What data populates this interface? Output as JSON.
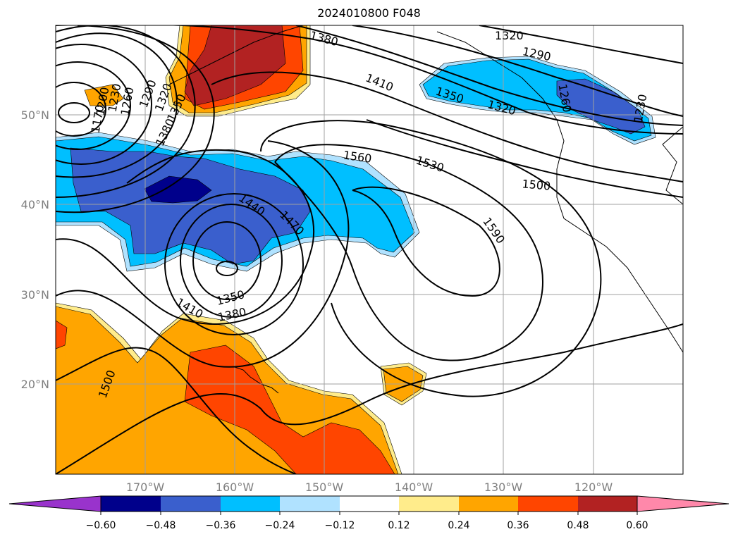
{
  "title": "2024010800 F048",
  "map": {
    "lon_range": [
      -180,
      -110
    ],
    "lat_range": [
      10,
      60
    ],
    "lon_gridlines": [
      -170,
      -160,
      -150,
      -140,
      -130,
      -120
    ],
    "lat_gridlines": [
      20,
      30,
      40,
      50
    ],
    "lon_labels": [
      "170°W",
      "160°W",
      "150°W",
      "140°W",
      "130°W",
      "120°W"
    ],
    "lat_labels": [
      "20°N",
      "30°N",
      "40°N",
      "50°N"
    ],
    "contour_labels": [
      "1380",
      "1320",
      "1290",
      "1410",
      "1350",
      "1320",
      "1260",
      "1230",
      "1170",
      "1200",
      "1230",
      "1260",
      "1290",
      "1320",
      "1350",
      "1380",
      "1560",
      "1530",
      "1500",
      "1440",
      "1470",
      "1590",
      "1350",
      "1380",
      "1410",
      "1500"
    ]
  },
  "colorbar": {
    "ticks": [
      "−0.60",
      "−0.48",
      "−0.36",
      "−0.24",
      "−0.12",
      "0.12",
      "0.24",
      "0.36",
      "0.48",
      "0.60"
    ],
    "colors": [
      "#9933cc",
      "#00008b",
      "#3a5fcd",
      "#00bfff",
      "#b0e2ff",
      "#ffffff",
      "#ffec8b",
      "#ffa500",
      "#ff4500",
      "#b22222",
      "#ff88aa"
    ]
  }
}
